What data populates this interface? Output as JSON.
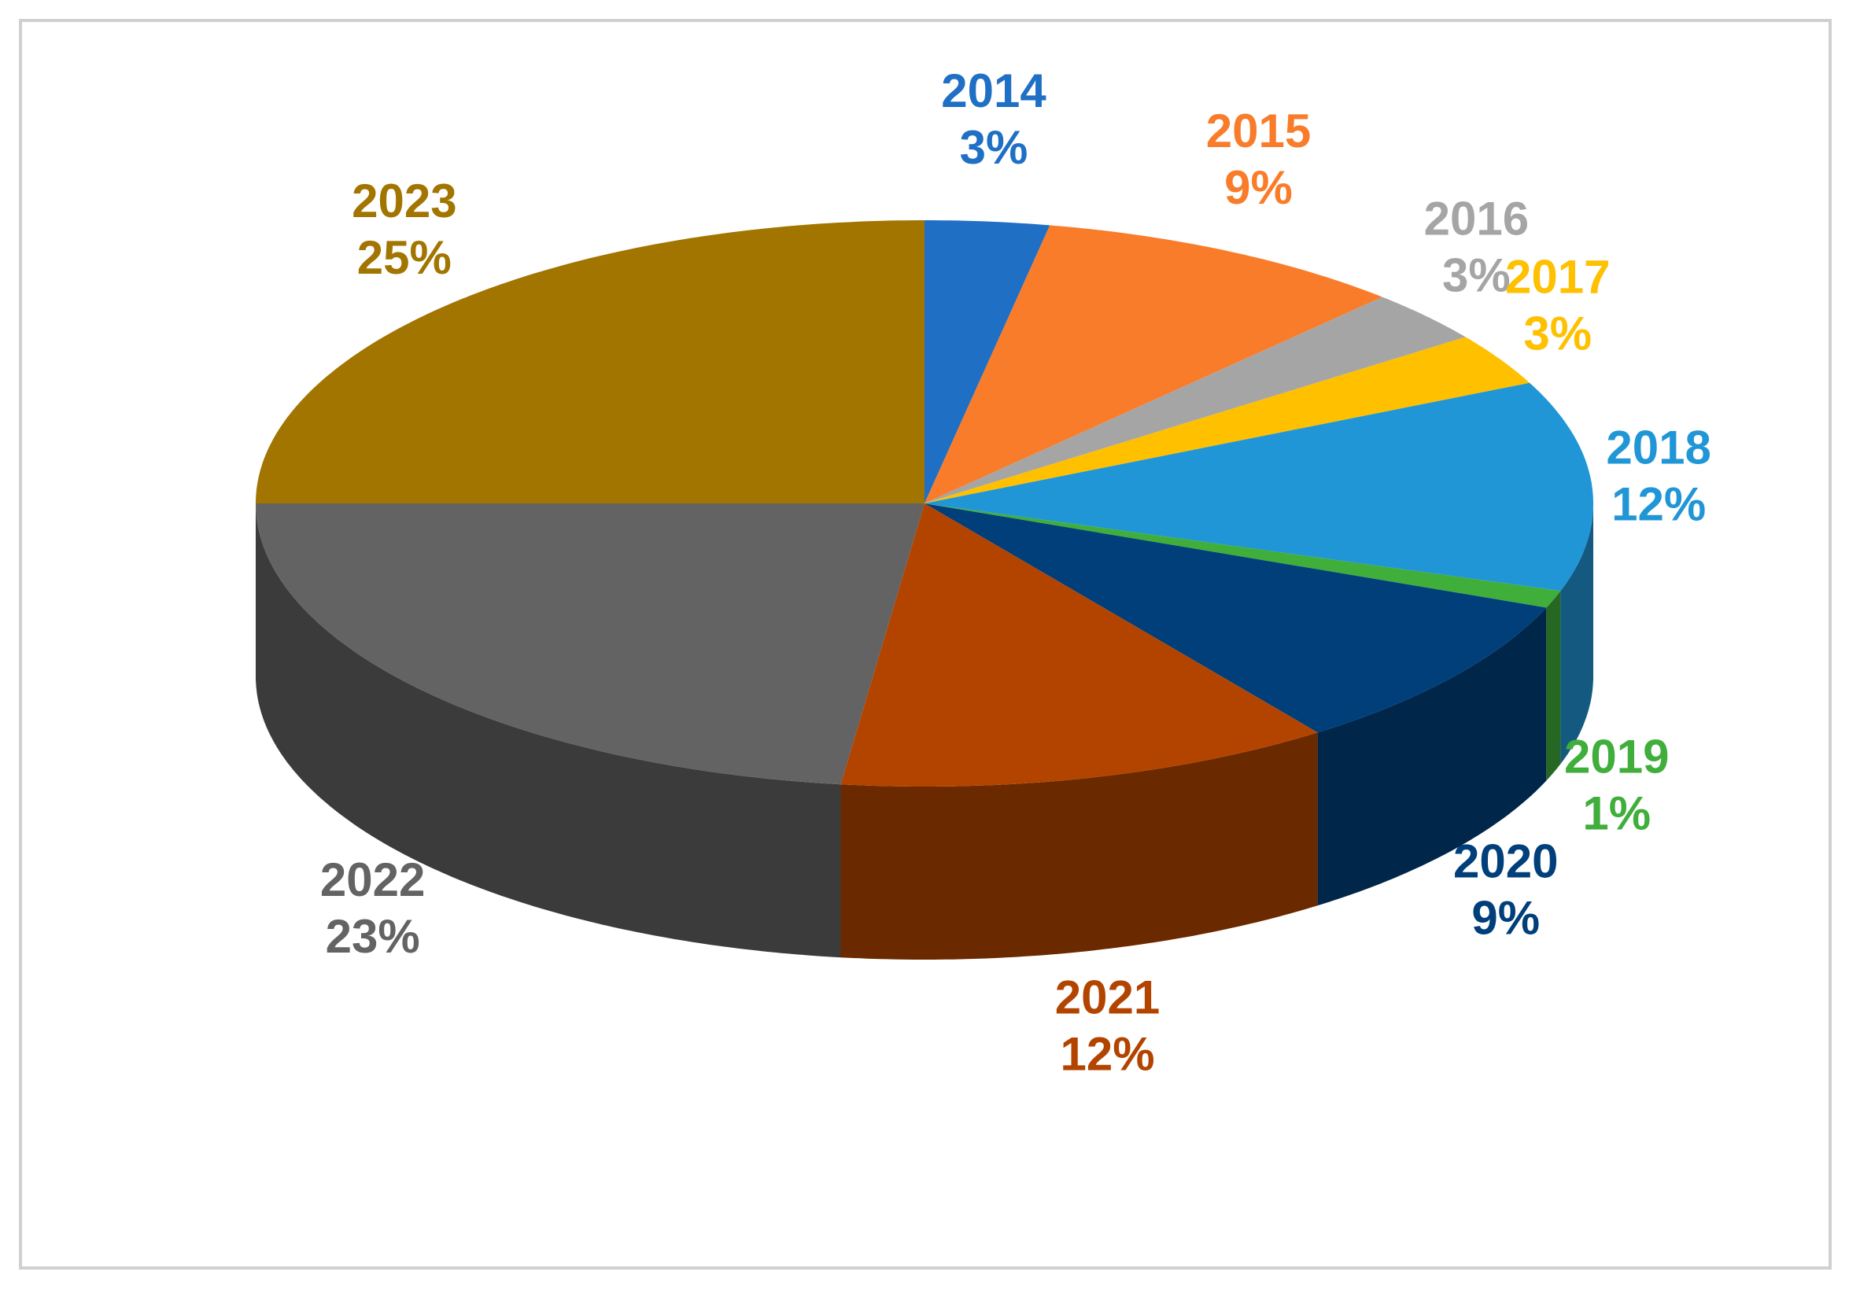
{
  "chart_data": {
    "type": "pie",
    "categories": [
      "2014",
      "2015",
      "2016",
      "2017",
      "2018",
      "2019",
      "2020",
      "2021",
      "2022",
      "2023"
    ],
    "values": [
      3,
      9,
      3,
      3,
      12,
      1,
      9,
      12,
      23,
      25
    ],
    "value_labels": [
      "3%",
      "9%",
      "3%",
      "3%",
      "12%",
      "1%",
      "9%",
      "12%",
      "23%",
      "25%"
    ],
    "colors": [
      "#1f6fc5",
      "#f97c2a",
      "#a5a5a5",
      "#ffc000",
      "#2196d6",
      "#3fae3b",
      "#003f7a",
      "#b34400",
      "#636363",
      "#a27500"
    ]
  }
}
